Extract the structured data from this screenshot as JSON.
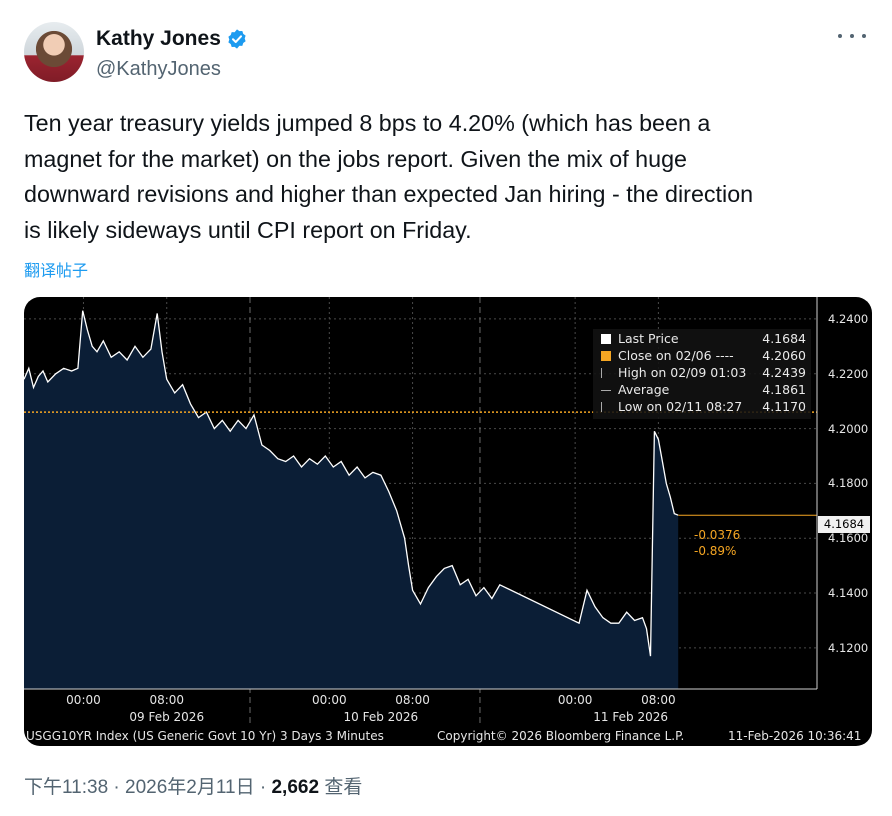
{
  "post": {
    "display_name": "Kathy Jones",
    "handle": "@KathyJones",
    "text": "Ten year treasury yields jumped 8 bps to 4.20% (which has been a\nmagnet for the market) on the jobs report. Given the mix of huge\ndownward revisions and higher than expected Jan hiring - the direction\nis likely sideways until CPI report on Friday.",
    "translate_label": "翻译帖子",
    "time": "下午11:38",
    "date": "2026年2月11日",
    "views_count": "2,662",
    "views_label": "查看",
    "separator": "·"
  },
  "colors": {
    "verified": "#1d9bf0",
    "area_fill": "#0b1e36",
    "line": "#ffffff",
    "close_line": "#f5a623"
  },
  "icons": {
    "verified": "verified-badge-icon",
    "more": "more-horizontal-icon"
  },
  "chart_data": {
    "type": "area",
    "ylim": [
      4.105,
      4.248
    ],
    "xlim": [
      0,
      1
    ],
    "y_ticks": [
      "4.2400",
      "4.2200",
      "4.2000",
      "4.1800",
      "4.1600",
      "4.1400",
      "4.1200"
    ],
    "y_tick_values": [
      4.24,
      4.22,
      4.2,
      4.18,
      4.16,
      4.14,
      4.12
    ],
    "x_ticks": [
      {
        "label": "00:00",
        "t": 0.075
      },
      {
        "label": "08:00",
        "t": 0.18
      },
      {
        "label": "00:00",
        "t": 0.385
      },
      {
        "label": "08:00",
        "t": 0.49
      },
      {
        "label": "00:00",
        "t": 0.695
      },
      {
        "label": "08:00",
        "t": 0.8
      }
    ],
    "x_dates": [
      {
        "label": "09 Feb 2026",
        "t": 0.18
      },
      {
        "label": "10 Feb 2026",
        "t": 0.45
      },
      {
        "label": "11 Feb 2026",
        "t": 0.765
      }
    ],
    "close_value": 4.206,
    "last_price": "4.1684",
    "last_value": 4.1684,
    "change": "-0.0376",
    "change_pct": "-0.89%",
    "legend": [
      {
        "label": "Last Price",
        "value": "4.1684"
      },
      {
        "label": "Close on 02/06 ----",
        "value": "4.2060"
      },
      {
        "label": "High on 02/09 01:03",
        "value": "4.2439"
      },
      {
        "label": "Average",
        "value": "4.1861"
      },
      {
        "label": "Low on 02/11 08:27",
        "value": "4.1170"
      }
    ],
    "series": [
      {
        "x": [
          0,
          0.006,
          0.012,
          0.018,
          0.024,
          0.03,
          0.04,
          0.05,
          0.06,
          0.068,
          0.074,
          0.08,
          0.086,
          0.092,
          0.1,
          0.11,
          0.12,
          0.13,
          0.14,
          0.15,
          0.16,
          0.168,
          0.174,
          0.18,
          0.19,
          0.2,
          0.21,
          0.22,
          0.23,
          0.24,
          0.25,
          0.26,
          0.27,
          0.28,
          0.29,
          0.3,
          0.31,
          0.32,
          0.33,
          0.34,
          0.35,
          0.36,
          0.37,
          0.38,
          0.39,
          0.4,
          0.41,
          0.42,
          0.43,
          0.44,
          0.45,
          0.46,
          0.47,
          0.48,
          0.485,
          0.49,
          0.5,
          0.51,
          0.52,
          0.53,
          0.54,
          0.55,
          0.56,
          0.57,
          0.58,
          0.59,
          0.6,
          0.7,
          0.71,
          0.72,
          0.73,
          0.74,
          0.75,
          0.76,
          0.77,
          0.78,
          0.785,
          0.79,
          0.795,
          0.8,
          0.805,
          0.81,
          0.815,
          0.82,
          0.825
        ],
        "y": [
          4.218,
          4.222,
          4.215,
          4.219,
          4.221,
          4.217,
          4.22,
          4.222,
          4.221,
          4.222,
          4.243,
          4.236,
          4.23,
          4.228,
          4.232,
          4.226,
          4.228,
          4.225,
          4.23,
          4.226,
          4.229,
          4.242,
          4.228,
          4.218,
          4.213,
          4.216,
          4.209,
          4.204,
          4.206,
          4.2,
          4.203,
          4.199,
          4.203,
          4.2,
          4.205,
          4.194,
          4.192,
          4.189,
          4.188,
          4.19,
          4.186,
          4.189,
          4.187,
          4.19,
          4.186,
          4.188,
          4.183,
          4.186,
          4.182,
          4.184,
          4.183,
          4.177,
          4.17,
          4.16,
          4.15,
          4.141,
          4.136,
          4.142,
          4.146,
          4.149,
          4.15,
          4.143,
          4.145,
          4.139,
          4.142,
          4.138,
          4.143,
          4.129,
          4.141,
          4.135,
          4.131,
          4.129,
          4.129,
          4.133,
          4.13,
          4.131,
          4.127,
          4.117,
          4.199,
          4.196,
          4.188,
          4.18,
          4.175,
          4.169,
          4.1684
        ]
      }
    ]
  }
}
